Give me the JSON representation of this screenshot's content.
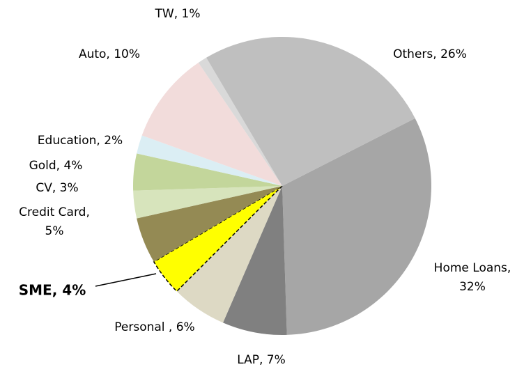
{
  "chart_data": {
    "type": "pie",
    "categories": [
      "Home Loans",
      "LAP",
      "Personal",
      "SME",
      "Credit Card",
      "CV",
      "Gold",
      "Education",
      "Auto",
      "TW",
      "Others"
    ],
    "values": [
      32,
      7,
      6,
      4,
      5,
      3,
      4,
      2,
      10,
      1,
      26
    ],
    "value_labels": [
      "Home Loans,\n32%",
      "LAP, 7%",
      "Personal , 6%",
      "SME, 4%",
      "Credit Card,\n5%",
      "CV, 3%",
      "Gold, 4%",
      "Education, 2%",
      "Auto, 10%",
      "TW, 1%",
      "Others, 26%"
    ],
    "colors": [
      "#a6a6a6",
      "#808080",
      "#ddd9c4",
      "#ffff00",
      "#948a54",
      "#d7e4bc",
      "#c3d69b",
      "#dbeef4",
      "#f2dcdb",
      "#d9d9d9",
      "#bfbfbf"
    ],
    "highlight": "SME"
  }
}
